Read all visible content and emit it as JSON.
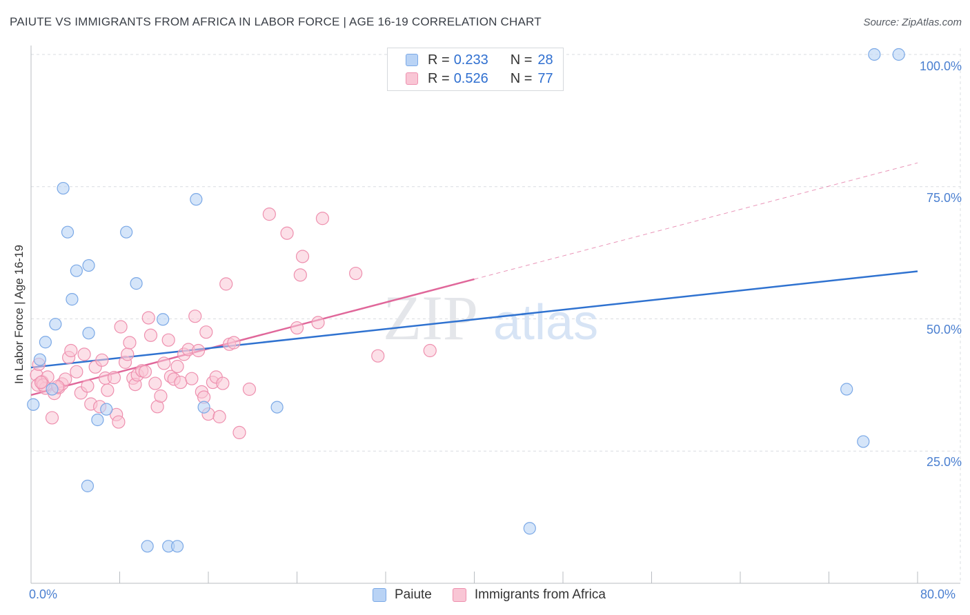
{
  "title": "PAIUTE VS IMMIGRANTS FROM AFRICA IN LABOR FORCE | AGE 16-19 CORRELATION CHART",
  "source": "Source: ZipAtlas.com",
  "watermark": {
    "zip": "ZIP",
    "atlas": "atlas"
  },
  "legend": {
    "paiute": {
      "r_label": "R =",
      "r_value": "0.233",
      "n_label": "N =",
      "n_value": "28"
    },
    "africa": {
      "r_label": "R =",
      "r_value": "0.526",
      "n_label": "N =",
      "n_value": "77"
    }
  },
  "bottom_legend": {
    "paiute": "Paiute",
    "africa": "Immigrants from Africa"
  },
  "colors": {
    "paiute_fill": "#b9d3f5",
    "paiute_stroke": "#7aa8e6",
    "paiute_line": "#2f72d0",
    "africa_fill": "#f9c6d5",
    "africa_stroke": "#ee8fae",
    "africa_line": "#e0679a",
    "grid": "#d9dce0",
    "tick": "#4a7fd0"
  },
  "chart_data": {
    "type": "scatter",
    "title": "PAIUTE VS IMMIGRANTS FROM AFRICA IN LABOR FORCE | AGE 16-19 CORRELATION CHART",
    "xlabel": "",
    "ylabel": "In Labor Force | Age 16-19",
    "xlim": [
      0,
      80
    ],
    "ylim": [
      0,
      105
    ],
    "x_tick_labels": [
      "0.0%",
      "80.0%"
    ],
    "y_ticks": [
      25,
      50,
      75,
      100
    ],
    "y_tick_labels": [
      "25.0%",
      "50.0%",
      "75.0%",
      "100.0%"
    ],
    "series": [
      {
        "name": "Paiute",
        "points": [
          [
            0.2,
            33.8
          ],
          [
            0.8,
            42.3
          ],
          [
            1.3,
            45.6
          ],
          [
            2.2,
            49.0
          ],
          [
            1.9,
            36.7
          ],
          [
            2.9,
            74.7
          ],
          [
            3.3,
            66.4
          ],
          [
            3.7,
            53.7
          ],
          [
            4.1,
            59.1
          ],
          [
            5.2,
            60.1
          ],
          [
            5.2,
            47.3
          ],
          [
            6.0,
            30.9
          ],
          [
            6.8,
            32.9
          ],
          [
            8.6,
            66.4
          ],
          [
            9.5,
            56.7
          ],
          [
            10.5,
            7.0
          ],
          [
            11.9,
            49.9
          ],
          [
            12.4,
            7.0
          ],
          [
            13.2,
            7.0
          ],
          [
            14.9,
            72.6
          ],
          [
            15.6,
            33.3
          ],
          [
            22.2,
            33.3
          ],
          [
            5.1,
            18.4
          ],
          [
            45.0,
            10.4
          ],
          [
            73.6,
            36.7
          ],
          [
            75.1,
            26.8
          ],
          [
            76.1,
            100.0
          ],
          [
            78.3,
            100.0
          ]
        ],
        "trend": {
          "x": [
            0,
            80
          ],
          "y": [
            40.8,
            59.0
          ]
        }
      },
      {
        "name": "Immigrants from Africa",
        "points": [
          [
            0.5,
            39.4
          ],
          [
            0.7,
            41.4
          ],
          [
            0.6,
            37.5
          ],
          [
            1.0,
            38.1
          ],
          [
            1.3,
            36.9
          ],
          [
            1.5,
            39.0
          ],
          [
            1.9,
            31.3
          ],
          [
            2.1,
            35.9
          ],
          [
            2.5,
            37.0
          ],
          [
            2.8,
            37.7
          ],
          [
            3.1,
            38.6
          ],
          [
            3.4,
            42.7
          ],
          [
            3.6,
            44.0
          ],
          [
            4.1,
            40.0
          ],
          [
            4.5,
            36.0
          ],
          [
            4.8,
            43.3
          ],
          [
            5.1,
            37.3
          ],
          [
            5.4,
            33.9
          ],
          [
            5.8,
            40.9
          ],
          [
            6.2,
            33.4
          ],
          [
            6.4,
            42.2
          ],
          [
            6.7,
            38.8
          ],
          [
            6.9,
            36.5
          ],
          [
            7.5,
            38.9
          ],
          [
            7.7,
            31.9
          ],
          [
            7.9,
            30.5
          ],
          [
            8.1,
            48.5
          ],
          [
            8.5,
            41.8
          ],
          [
            8.7,
            43.3
          ],
          [
            8.9,
            45.5
          ],
          [
            9.2,
            38.8
          ],
          [
            9.4,
            37.6
          ],
          [
            9.6,
            39.4
          ],
          [
            10.0,
            40.2
          ],
          [
            10.3,
            40.0
          ],
          [
            10.6,
            50.2
          ],
          [
            10.8,
            46.9
          ],
          [
            11.2,
            37.8
          ],
          [
            11.4,
            33.4
          ],
          [
            11.7,
            35.4
          ],
          [
            12.0,
            41.6
          ],
          [
            12.4,
            46.0
          ],
          [
            12.6,
            39.1
          ],
          [
            12.9,
            38.6
          ],
          [
            13.2,
            41.0
          ],
          [
            13.5,
            38.0
          ],
          [
            13.8,
            43.3
          ],
          [
            14.2,
            44.2
          ],
          [
            14.5,
            38.7
          ],
          [
            14.8,
            50.5
          ],
          [
            15.1,
            44.0
          ],
          [
            15.4,
            36.2
          ],
          [
            15.6,
            35.2
          ],
          [
            15.8,
            47.5
          ],
          [
            16.0,
            32.0
          ],
          [
            16.4,
            38.0
          ],
          [
            16.7,
            39.0
          ],
          [
            17.0,
            31.5
          ],
          [
            17.3,
            37.8
          ],
          [
            17.6,
            56.6
          ],
          [
            17.9,
            45.2
          ],
          [
            18.3,
            45.5
          ],
          [
            18.8,
            28.5
          ],
          [
            19.7,
            36.7
          ],
          [
            21.5,
            69.8
          ],
          [
            23.1,
            66.2
          ],
          [
            24.0,
            48.3
          ],
          [
            24.3,
            58.3
          ],
          [
            24.5,
            61.8
          ],
          [
            25.9,
            49.3
          ],
          [
            26.3,
            69.0
          ],
          [
            29.3,
            58.6
          ],
          [
            31.3,
            43.0
          ],
          [
            36.0,
            44.0
          ],
          [
            2.4,
            37.2
          ],
          [
            1.1,
            37.5
          ],
          [
            0.9,
            38.0
          ]
        ],
        "trend_solid": {
          "x": [
            0,
            40
          ],
          "y": [
            35.6,
            57.5
          ]
        },
        "trend_dashed": {
          "x": [
            40,
            80
          ],
          "y": [
            57.5,
            79.5
          ]
        }
      }
    ]
  }
}
